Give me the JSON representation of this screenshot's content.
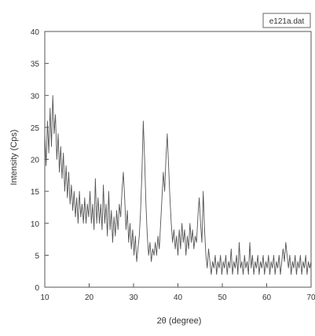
{
  "chart_data": {
    "type": "line",
    "legend": "e121a.dat",
    "xlabel": "2θ (degree)",
    "ylabel": "Intensity (Cps)",
    "xlim": [
      10,
      70
    ],
    "ylim": [
      0,
      40
    ],
    "xticks": [
      10,
      20,
      30,
      40,
      50,
      60,
      70
    ],
    "yticks": [
      0,
      5,
      10,
      15,
      20,
      25,
      30,
      35,
      40
    ],
    "grid": false,
    "legend_position": "top-right",
    "series": [
      {
        "color": "#555555",
        "points": [
          [
            10.0,
            24
          ],
          [
            10.3,
            19
          ],
          [
            10.6,
            26
          ],
          [
            10.9,
            21
          ],
          [
            11.2,
            28
          ],
          [
            11.5,
            22
          ],
          [
            11.8,
            30
          ],
          [
            12.1,
            24
          ],
          [
            12.4,
            27
          ],
          [
            12.7,
            20
          ],
          [
            13.0,
            24
          ],
          [
            13.3,
            18
          ],
          [
            13.6,
            22
          ],
          [
            13.9,
            17
          ],
          [
            14.2,
            21
          ],
          [
            14.5,
            15
          ],
          [
            14.8,
            19
          ],
          [
            15.1,
            14
          ],
          [
            15.4,
            18
          ],
          [
            15.7,
            13
          ],
          [
            16.0,
            16
          ],
          [
            16.3,
            12
          ],
          [
            16.6,
            15
          ],
          [
            16.9,
            11
          ],
          [
            17.2,
            14
          ],
          [
            17.5,
            10
          ],
          [
            17.8,
            15
          ],
          [
            18.1,
            11
          ],
          [
            18.4,
            13
          ],
          [
            18.7,
            10
          ],
          [
            19.0,
            14
          ],
          [
            19.3,
            10
          ],
          [
            19.6,
            13
          ],
          [
            19.9,
            11
          ],
          [
            20.2,
            15
          ],
          [
            20.5,
            10
          ],
          [
            20.8,
            13
          ],
          [
            21.1,
            9
          ],
          [
            21.4,
            17
          ],
          [
            21.7,
            10
          ],
          [
            22.0,
            14
          ],
          [
            22.3,
            10
          ],
          [
            22.6,
            13
          ],
          [
            22.9,
            9
          ],
          [
            23.2,
            16
          ],
          [
            23.5,
            10
          ],
          [
            23.8,
            13
          ],
          [
            24.1,
            8
          ],
          [
            24.4,
            15
          ],
          [
            24.7,
            9
          ],
          [
            25.0,
            12
          ],
          [
            25.3,
            7
          ],
          [
            25.6,
            11
          ],
          [
            25.9,
            8
          ],
          [
            26.2,
            12
          ],
          [
            26.5,
            9
          ],
          [
            26.8,
            13
          ],
          [
            27.1,
            11
          ],
          [
            27.4,
            15
          ],
          [
            27.7,
            18
          ],
          [
            28.0,
            14
          ],
          [
            28.3,
            9
          ],
          [
            28.6,
            12
          ],
          [
            28.9,
            7
          ],
          [
            29.2,
            10
          ],
          [
            29.5,
            6
          ],
          [
            29.8,
            9
          ],
          [
            30.1,
            5
          ],
          [
            30.4,
            8
          ],
          [
            30.7,
            4
          ],
          [
            31.0,
            6
          ],
          [
            31.3,
            8
          ],
          [
            31.6,
            12
          ],
          [
            31.9,
            18
          ],
          [
            32.2,
            26
          ],
          [
            32.5,
            20
          ],
          [
            32.8,
            13
          ],
          [
            33.1,
            8
          ],
          [
            33.4,
            5
          ],
          [
            33.7,
            7
          ],
          [
            34.0,
            4
          ],
          [
            34.3,
            6
          ],
          [
            34.6,
            5
          ],
          [
            34.9,
            7
          ],
          [
            35.2,
            5
          ],
          [
            35.5,
            8
          ],
          [
            35.8,
            6
          ],
          [
            36.1,
            10
          ],
          [
            36.4,
            14
          ],
          [
            36.7,
            18
          ],
          [
            37.0,
            15
          ],
          [
            37.3,
            20
          ],
          [
            37.6,
            24
          ],
          [
            37.9,
            19
          ],
          [
            38.2,
            14
          ],
          [
            38.5,
            10
          ],
          [
            38.8,
            7
          ],
          [
            39.1,
            9
          ],
          [
            39.4,
            6
          ],
          [
            39.7,
            8
          ],
          [
            40.0,
            5
          ],
          [
            40.3,
            9
          ],
          [
            40.6,
            6
          ],
          [
            40.9,
            10
          ],
          [
            41.2,
            7
          ],
          [
            41.5,
            9
          ],
          [
            41.8,
            5
          ],
          [
            42.1,
            8
          ],
          [
            42.4,
            6
          ],
          [
            42.7,
            10
          ],
          [
            43.0,
            7
          ],
          [
            43.3,
            9
          ],
          [
            43.6,
            6
          ],
          [
            43.9,
            8
          ],
          [
            44.2,
            7
          ],
          [
            44.5,
            11
          ],
          [
            44.8,
            14
          ],
          [
            45.1,
            10
          ],
          [
            45.4,
            7
          ],
          [
            45.7,
            15
          ],
          [
            46.0,
            9
          ],
          [
            46.3,
            5
          ],
          [
            46.6,
            3
          ],
          [
            46.9,
            6
          ],
          [
            47.2,
            4
          ],
          [
            47.5,
            2
          ],
          [
            47.8,
            4
          ],
          [
            48.1,
            3
          ],
          [
            48.4,
            5
          ],
          [
            48.7,
            2
          ],
          [
            49.0,
            4
          ],
          [
            49.3,
            3
          ],
          [
            49.6,
            5
          ],
          [
            49.9,
            2
          ],
          [
            50.2,
            4
          ],
          [
            50.5,
            3
          ],
          [
            50.8,
            5
          ],
          [
            51.1,
            2
          ],
          [
            51.4,
            4
          ],
          [
            51.7,
            3
          ],
          [
            52.0,
            6
          ],
          [
            52.3,
            2
          ],
          [
            52.6,
            4
          ],
          [
            52.9,
            3
          ],
          [
            53.2,
            5
          ],
          [
            53.5,
            2
          ],
          [
            53.8,
            7
          ],
          [
            54.1,
            3
          ],
          [
            54.4,
            4
          ],
          [
            54.7,
            2
          ],
          [
            55.0,
            5
          ],
          [
            55.3,
            3
          ],
          [
            55.6,
            4
          ],
          [
            55.9,
            2
          ],
          [
            56.2,
            7
          ],
          [
            56.5,
            3
          ],
          [
            56.8,
            5
          ],
          [
            57.1,
            2
          ],
          [
            57.4,
            4
          ],
          [
            57.7,
            3
          ],
          [
            58.0,
            5
          ],
          [
            58.3,
            2
          ],
          [
            58.6,
            4
          ],
          [
            58.9,
            3
          ],
          [
            59.2,
            5
          ],
          [
            59.5,
            2
          ],
          [
            59.8,
            4
          ],
          [
            60.1,
            3
          ],
          [
            60.4,
            5
          ],
          [
            60.7,
            2
          ],
          [
            61.0,
            4
          ],
          [
            61.3,
            3
          ],
          [
            61.6,
            5
          ],
          [
            61.9,
            2
          ],
          [
            62.2,
            4
          ],
          [
            62.5,
            3
          ],
          [
            62.8,
            5
          ],
          [
            63.1,
            2
          ],
          [
            63.4,
            4
          ],
          [
            63.7,
            6
          ],
          [
            64.0,
            4
          ],
          [
            64.3,
            7
          ],
          [
            64.6,
            5
          ],
          [
            64.9,
            3
          ],
          [
            65.2,
            5
          ],
          [
            65.5,
            2
          ],
          [
            65.8,
            4
          ],
          [
            66.1,
            3
          ],
          [
            66.4,
            5
          ],
          [
            66.7,
            2
          ],
          [
            67.0,
            4
          ],
          [
            67.3,
            3
          ],
          [
            67.6,
            5
          ],
          [
            67.9,
            2
          ],
          [
            68.2,
            4
          ],
          [
            68.5,
            3
          ],
          [
            68.8,
            5
          ],
          [
            69.1,
            2
          ],
          [
            69.4,
            4
          ],
          [
            69.7,
            3
          ],
          [
            70.0,
            4
          ]
        ]
      }
    ]
  }
}
